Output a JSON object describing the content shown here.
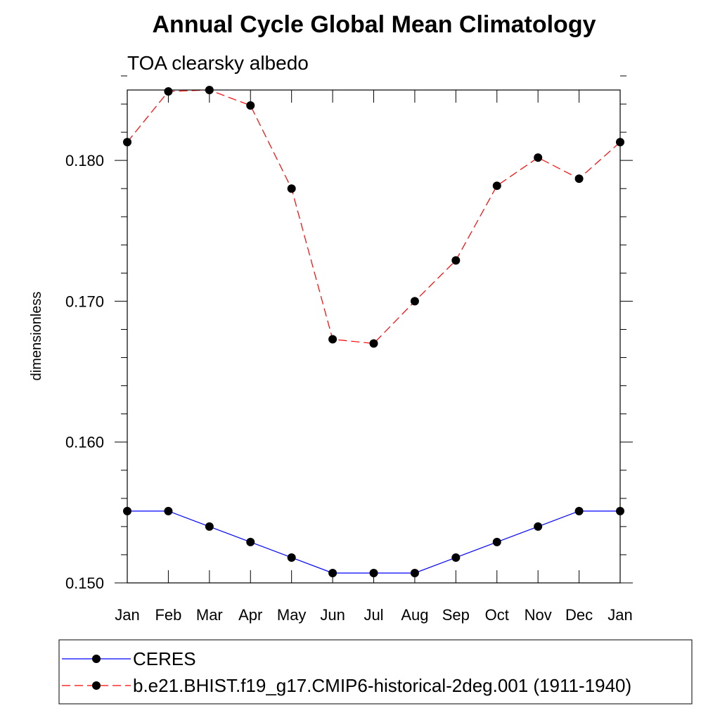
{
  "chart_data": {
    "type": "line",
    "title": "Annual Cycle Global Mean Climatology",
    "subtitle": "TOA clearsky albedo",
    "xlabel": "",
    "ylabel": "dimensionless",
    "categories": [
      "Jan",
      "Feb",
      "Mar",
      "Apr",
      "May",
      "Jun",
      "Jul",
      "Aug",
      "Sep",
      "Oct",
      "Nov",
      "Dec",
      "Jan"
    ],
    "yticks": [
      "0.150",
      "0.160",
      "0.170",
      "0.180"
    ],
    "ylim": [
      0.15,
      0.185
    ],
    "grid": false,
    "legend_position": "bottom",
    "series": [
      {
        "name": "CERES",
        "color": "#0000ff",
        "line_style": "solid",
        "values": [
          0.1551,
          0.1551,
          0.154,
          0.1529,
          0.1518,
          0.1507,
          0.1507,
          0.1507,
          0.1518,
          0.1529,
          0.154,
          0.1551,
          0.1551
        ]
      },
      {
        "name": "b.e21.BHIST.f19_g17.CMIP6-historical-2deg.001 (1911-1940)",
        "color": "#ff0000",
        "line_style": "dashed",
        "values": [
          0.1813,
          0.1849,
          0.185,
          0.1839,
          0.178,
          0.1673,
          0.167,
          0.17,
          0.1729,
          0.1782,
          0.1802,
          0.1787,
          0.1813
        ]
      }
    ]
  }
}
